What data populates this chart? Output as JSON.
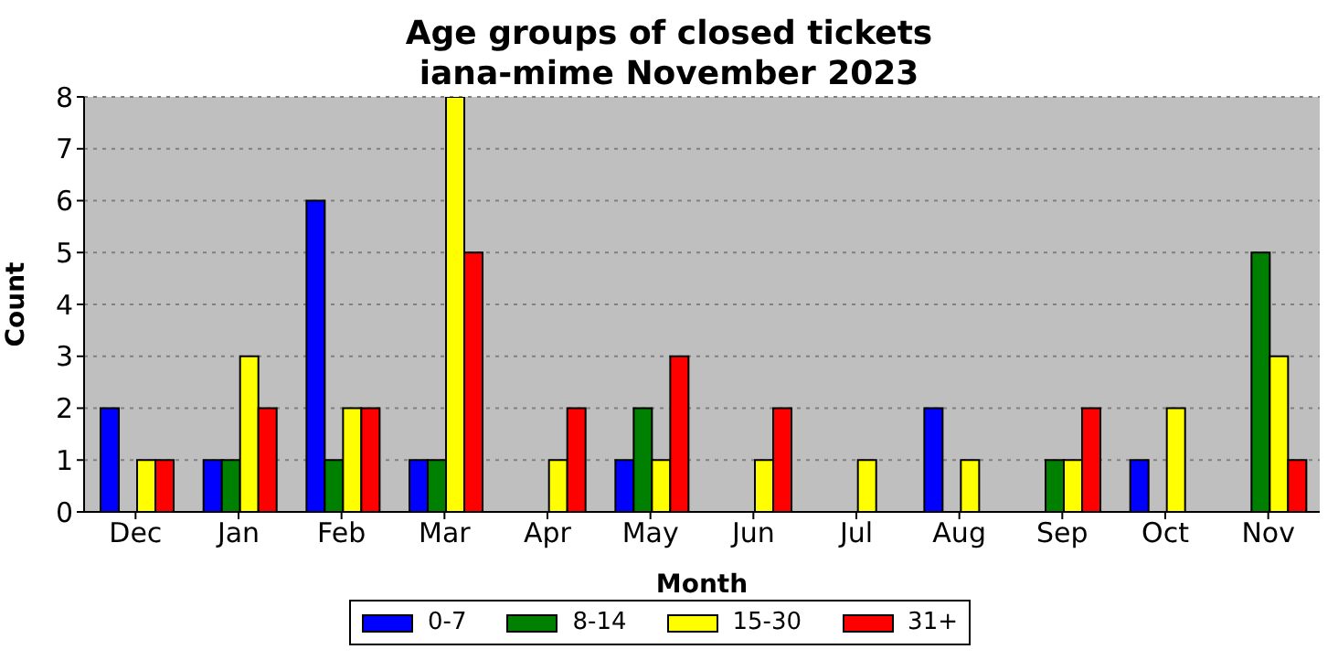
{
  "chart_data": {
    "type": "bar",
    "title": "Age groups of closed tickets\niana-mime November 2023",
    "xlabel": "Month",
    "ylabel": "Count",
    "categories": [
      "Dec",
      "Jan",
      "Feb",
      "Mar",
      "Apr",
      "May",
      "Jun",
      "Jul",
      "Aug",
      "Sep",
      "Oct",
      "Nov"
    ],
    "series": [
      {
        "name": "0-7",
        "color": "#0000ff",
        "values": [
          2,
          1,
          6,
          1,
          0,
          1,
          0,
          0,
          2,
          0,
          1,
          0
        ]
      },
      {
        "name": "8-14",
        "color": "#008000",
        "values": [
          0,
          1,
          1,
          1,
          0,
          2,
          0,
          0,
          0,
          1,
          0,
          5
        ]
      },
      {
        "name": "15-30",
        "color": "#ffff00",
        "values": [
          1,
          3,
          2,
          8,
          1,
          1,
          1,
          1,
          1,
          1,
          2,
          3
        ]
      },
      {
        "name": "31+",
        "color": "#ff0000",
        "values": [
          1,
          2,
          2,
          5,
          2,
          3,
          2,
          0,
          0,
          2,
          0,
          1
        ]
      }
    ],
    "ylim": [
      0,
      8
    ],
    "yticks": [
      0,
      1,
      2,
      3,
      4,
      5,
      6,
      7,
      8
    ],
    "grid": "y",
    "legend": "bottom"
  }
}
